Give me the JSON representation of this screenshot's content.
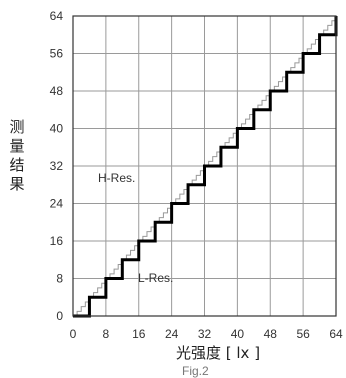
{
  "chart_data": {
    "type": "line",
    "xlabel": "光强度 [ lx ]",
    "ylabel": "测量结果",
    "xlim": [
      0,
      64
    ],
    "ylim": [
      0,
      64
    ],
    "x_ticks": [
      "0",
      "8",
      "16",
      "24",
      "32",
      "40",
      "48",
      "56",
      "64"
    ],
    "y_ticks": [
      "0",
      "8",
      "16",
      "24",
      "32",
      "40",
      "48",
      "56",
      "64"
    ],
    "grid": true,
    "annotations": [
      "H-Res.",
      "L-Res."
    ],
    "footer_text": "Fig.2",
    "series": [
      {
        "name": "H-Res.",
        "style": "thin-gray-step",
        "color": "#999999",
        "step": 1,
        "x": [
          0,
          64
        ],
        "y": [
          0,
          64
        ]
      },
      {
        "name": "L-Res.",
        "style": "thick-black-step",
        "color": "#000000",
        "step": 4,
        "x": [
          0,
          4,
          8,
          12,
          16,
          20,
          24,
          28,
          32,
          36,
          40,
          44,
          48,
          52,
          56,
          60,
          64
        ],
        "y": [
          0,
          4,
          8,
          12,
          16,
          20,
          24,
          28,
          32,
          36,
          40,
          44,
          48,
          52,
          56,
          60,
          64
        ]
      }
    ]
  }
}
